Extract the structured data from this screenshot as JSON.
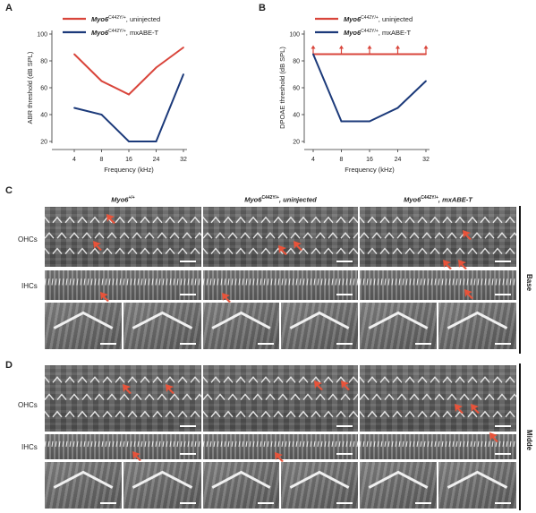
{
  "panels": {
    "a": {
      "label": "A"
    },
    "b": {
      "label": "B"
    },
    "c": {
      "label": "C",
      "side_label": "Base"
    },
    "d": {
      "label": "D",
      "side_label": "Midde"
    }
  },
  "legend": {
    "uninjected": {
      "gene": "Myo6",
      "sup": "C442Y/+",
      "suffix": ", uninjected",
      "color": "#d9453b"
    },
    "treated": {
      "gene": "Myo6",
      "sup": "C442Y/+",
      "suffix": ", mxABE-T",
      "color": "#1c3a7a"
    }
  },
  "columns": [
    {
      "gene": "Myo6",
      "sup": "+/+",
      "suffix": ""
    },
    {
      "gene": "Myo6",
      "sup": "C442Y/+",
      "suffix": ", uninjected"
    },
    {
      "gene": "Myo6",
      "sup": "C442Y/+",
      "suffix": ", mxABE-T"
    }
  ],
  "row_labels": {
    "ohc": "OHCs",
    "ihc": "IHCs"
  },
  "chart_data": [
    {
      "type": "line",
      "title": "",
      "xlabel": "Frequency (kHz)",
      "ylabel": "ABR threshold (dB SPL)",
      "categories": [
        "4",
        "8",
        "16",
        "24",
        "32"
      ],
      "ylim": [
        20,
        100
      ],
      "yticks": [
        20,
        40,
        60,
        80,
        100
      ],
      "series": [
        {
          "name": "uninjected",
          "values": [
            85,
            65,
            55,
            75,
            90
          ],
          "color": "#d9453b"
        },
        {
          "name": "mxABE-T",
          "values": [
            45,
            40,
            20,
            20,
            70
          ],
          "color": "#1c3a7a"
        }
      ]
    },
    {
      "type": "line",
      "title": "",
      "xlabel": "Frequency (kHz)",
      "ylabel": "DPOAE threshold (dB SPL)",
      "categories": [
        "4",
        "8",
        "16",
        "24",
        "32"
      ],
      "ylim": [
        20,
        100
      ],
      "yticks": [
        20,
        40,
        60,
        80,
        100
      ],
      "series": [
        {
          "name": "uninjected",
          "values": [
            85,
            85,
            85,
            85,
            85
          ],
          "color": "#d9453b",
          "arrows": true
        },
        {
          "name": "mxABE-T",
          "values": [
            85,
            35,
            35,
            45,
            65
          ],
          "color": "#1c3a7a"
        }
      ]
    }
  ]
}
